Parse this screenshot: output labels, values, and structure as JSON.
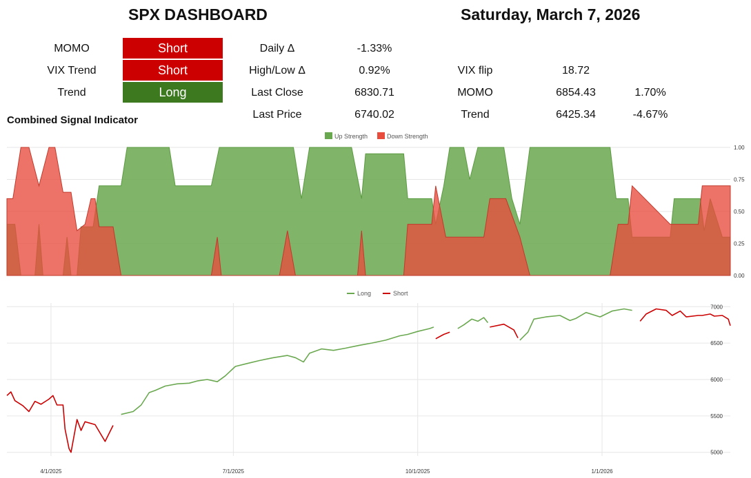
{
  "header": {
    "title": "SPX DASHBOARD",
    "date": "Saturday, March 7, 2026"
  },
  "signals": [
    {
      "label": "MOMO",
      "value": "Short",
      "state": "short"
    },
    {
      "label": "VIX Trend",
      "value": "Short",
      "state": "short"
    },
    {
      "label": "Trend",
      "value": "Long",
      "state": "long"
    }
  ],
  "stats": {
    "daily_label": "Daily Δ",
    "daily_value": "-1.33%",
    "highlow_label": "High/Low Δ",
    "highlow_value": "0.92%",
    "lastclose_label": "Last Close",
    "lastclose_value": "6830.71",
    "lastprice_label": "Last Price",
    "lastprice_value": "6740.02"
  },
  "levels": {
    "vixflip_label": "VIX flip",
    "vixflip_value": "18.72",
    "momo_label": "MOMO",
    "momo_value": "6854.43",
    "momo_pct": "1.70%",
    "trend_label": "Trend",
    "trend_value": "6425.34",
    "trend_pct": "-4.67%"
  },
  "colors": {
    "short": "#cc0000",
    "long": "#3d7a1f",
    "up_strength": "#6aa84f",
    "down_strength": "#e84c3d",
    "line_long": "#6aa84f",
    "line_short": "#cc0000"
  },
  "chart_data": [
    {
      "type": "area",
      "title": "Combined Signal Indicator",
      "legend": "top-center",
      "ylim": [
        0,
        1
      ],
      "yticks": [
        "0.00",
        "0.25",
        "0.50",
        "0.75",
        "1.00"
      ],
      "grid": true,
      "series": [
        {
          "name": "Up Strength",
          "color": "#6aa84f"
        },
        {
          "name": "Down Strength",
          "color": "#e84c3d"
        }
      ],
      "x_start": "2025-03-10",
      "x_end": "2026-03-06",
      "up_points": [
        [
          "2025-03-10",
          0.4
        ],
        [
          "2025-03-14",
          0.4
        ],
        [
          "2025-03-17",
          0.0
        ],
        [
          "2025-03-24",
          0.0
        ],
        [
          "2025-03-26",
          0.4
        ],
        [
          "2025-03-28",
          0.0
        ],
        [
          "2025-04-07",
          0.0
        ],
        [
          "2025-04-09",
          0.3
        ],
        [
          "2025-04-11",
          0.0
        ],
        [
          "2025-04-14",
          0.0
        ],
        [
          "2025-04-16",
          0.38
        ],
        [
          "2025-04-22",
          0.38
        ],
        [
          "2025-04-25",
          0.7
        ],
        [
          "2025-05-06",
          0.7
        ],
        [
          "2025-05-09",
          1.0
        ],
        [
          "2025-05-30",
          1.0
        ],
        [
          "2025-06-02",
          0.7
        ],
        [
          "2025-06-20",
          0.7
        ],
        [
          "2025-06-24",
          1.0
        ],
        [
          "2025-07-31",
          1.0
        ],
        [
          "2025-08-04",
          0.6
        ],
        [
          "2025-08-08",
          1.0
        ],
        [
          "2025-08-29",
          1.0
        ],
        [
          "2025-09-03",
          0.6
        ],
        [
          "2025-09-05",
          0.95
        ],
        [
          "2025-09-24",
          0.95
        ],
        [
          "2025-09-26",
          0.6
        ],
        [
          "2025-10-08",
          0.6
        ],
        [
          "2025-10-10",
          0.4
        ],
        [
          "2025-10-14",
          0.7
        ],
        [
          "2025-10-17",
          1.0
        ],
        [
          "2025-10-24",
          1.0
        ],
        [
          "2025-10-27",
          0.75
        ],
        [
          "2025-10-31",
          1.0
        ],
        [
          "2025-11-13",
          1.0
        ],
        [
          "2025-11-17",
          0.6
        ],
        [
          "2025-11-21",
          0.4
        ],
        [
          "2025-11-26",
          1.0
        ],
        [
          "2026-01-05",
          1.0
        ],
        [
          "2026-01-08",
          0.6
        ],
        [
          "2026-01-14",
          0.6
        ],
        [
          "2026-01-16",
          0.3
        ],
        [
          "2026-02-04",
          0.3
        ],
        [
          "2026-02-06",
          0.6
        ],
        [
          "2026-02-19",
          0.6
        ],
        [
          "2026-02-21",
          0.35
        ],
        [
          "2026-02-24",
          0.6
        ],
        [
          "2026-03-02",
          0.3
        ],
        [
          "2026-03-06",
          0.3
        ]
      ],
      "down_points": [
        [
          "2025-03-10",
          0.6
        ],
        [
          "2025-03-13",
          0.6
        ],
        [
          "2025-03-17",
          1.0
        ],
        [
          "2025-03-21",
          1.0
        ],
        [
          "2025-03-26",
          0.7
        ],
        [
          "2025-03-31",
          1.0
        ],
        [
          "2025-04-03",
          1.0
        ],
        [
          "2025-04-07",
          0.65
        ],
        [
          "2025-04-11",
          0.65
        ],
        [
          "2025-04-14",
          0.35
        ],
        [
          "2025-04-18",
          0.4
        ],
        [
          "2025-04-21",
          0.6
        ],
        [
          "2025-04-23",
          0.6
        ],
        [
          "2025-04-25",
          0.38
        ],
        [
          "2025-05-02",
          0.38
        ],
        [
          "2025-05-06",
          0.0
        ],
        [
          "2025-06-20",
          0.0
        ],
        [
          "2025-06-23",
          0.3
        ],
        [
          "2025-06-25",
          0.0
        ],
        [
          "2025-07-24",
          0.0
        ],
        [
          "2025-07-28",
          0.35
        ],
        [
          "2025-08-01",
          0.0
        ],
        [
          "2025-09-01",
          0.0
        ],
        [
          "2025-09-03",
          0.35
        ],
        [
          "2025-09-05",
          0.0
        ],
        [
          "2025-09-24",
          0.0
        ],
        [
          "2025-09-26",
          0.4
        ],
        [
          "2025-10-08",
          0.4
        ],
        [
          "2025-10-10",
          0.7
        ],
        [
          "2025-10-15",
          0.3
        ],
        [
          "2025-10-27",
          0.3
        ],
        [
          "2025-11-03",
          0.3
        ],
        [
          "2025-11-06",
          0.6
        ],
        [
          "2025-11-14",
          0.6
        ],
        [
          "2025-11-21",
          0.3
        ],
        [
          "2025-11-26",
          0.0
        ],
        [
          "2026-01-05",
          0.0
        ],
        [
          "2026-01-09",
          0.4
        ],
        [
          "2026-01-14",
          0.4
        ],
        [
          "2026-01-16",
          0.7
        ],
        [
          "2026-02-04",
          0.4
        ],
        [
          "2026-02-18",
          0.4
        ],
        [
          "2026-02-20",
          0.7
        ],
        [
          "2026-02-27",
          0.7
        ],
        [
          "2026-03-02",
          0.7
        ],
        [
          "2026-03-06",
          0.7
        ]
      ]
    },
    {
      "type": "line",
      "legend": "top-center",
      "ylim": [
        4950,
        7050
      ],
      "yticks": [
        5000,
        5500,
        6000,
        6500,
        7000
      ],
      "xticks": [
        {
          "date": "2025-04-01",
          "label": "4/1/2025"
        },
        {
          "date": "2025-07-01",
          "label": "7/1/2025"
        },
        {
          "date": "2025-10-01",
          "label": "10/1/2025"
        },
        {
          "date": "2026-01-01",
          "label": "1/1/2026"
        }
      ],
      "grid": true,
      "series": [
        {
          "name": "Long",
          "color": "#6aa84f"
        },
        {
          "name": "Short",
          "color": "#cc0000"
        }
      ],
      "x_start": "2025-03-10",
      "x_end": "2026-03-06",
      "points": [
        [
          "2025-03-10",
          5780,
          "S"
        ],
        [
          "2025-03-12",
          5830,
          "S"
        ],
        [
          "2025-03-14",
          5710,
          "S"
        ],
        [
          "2025-03-18",
          5640,
          "S"
        ],
        [
          "2025-03-21",
          5560,
          "S"
        ],
        [
          "2025-03-24",
          5700,
          "S"
        ],
        [
          "2025-03-27",
          5660,
          "S"
        ],
        [
          "2025-03-31",
          5730,
          "S"
        ],
        [
          "2025-04-02",
          5780,
          "S"
        ],
        [
          "2025-04-04",
          5650,
          "S"
        ],
        [
          "2025-04-07",
          5650,
          "S"
        ],
        [
          "2025-04-08",
          5320,
          "S"
        ],
        [
          "2025-04-10",
          5050,
          "S"
        ],
        [
          "2025-04-11",
          5000,
          "S"
        ],
        [
          "2025-04-14",
          5450,
          "S"
        ],
        [
          "2025-04-16",
          5300,
          "S"
        ],
        [
          "2025-04-18",
          5420,
          "S"
        ],
        [
          "2025-04-23",
          5380,
          "S"
        ],
        [
          "2025-04-28",
          5150,
          "S"
        ],
        [
          "2025-05-02",
          5370,
          "S"
        ],
        [
          "2025-05-06",
          5520,
          "L"
        ],
        [
          "2025-05-12",
          5560,
          "L"
        ],
        [
          "2025-05-16",
          5650,
          "L"
        ],
        [
          "2025-05-20",
          5820,
          "L"
        ],
        [
          "2025-05-23",
          5850,
          "L"
        ],
        [
          "2025-05-28",
          5910,
          "L"
        ],
        [
          "2025-06-03",
          5940,
          "L"
        ],
        [
          "2025-06-09",
          5950,
          "L"
        ],
        [
          "2025-06-13",
          5980,
          "L"
        ],
        [
          "2025-06-18",
          6000,
          "L"
        ],
        [
          "2025-06-23",
          5970,
          "L"
        ],
        [
          "2025-06-27",
          6050,
          "L"
        ],
        [
          "2025-07-02",
          6180,
          "L"
        ],
        [
          "2025-07-08",
          6220,
          "L"
        ],
        [
          "2025-07-14",
          6260,
          "L"
        ],
        [
          "2025-07-21",
          6300,
          "L"
        ],
        [
          "2025-07-28",
          6330,
          "L"
        ],
        [
          "2025-08-01",
          6300,
          "L"
        ],
        [
          "2025-08-05",
          6240,
          "L"
        ],
        [
          "2025-08-08",
          6360,
          "L"
        ],
        [
          "2025-08-14",
          6420,
          "L"
        ],
        [
          "2025-08-20",
          6400,
          "L"
        ],
        [
          "2025-08-26",
          6430,
          "L"
        ],
        [
          "2025-09-02",
          6470,
          "L"
        ],
        [
          "2025-09-08",
          6500,
          "L"
        ],
        [
          "2025-09-15",
          6540,
          "L"
        ],
        [
          "2025-09-22",
          6600,
          "L"
        ],
        [
          "2025-09-26",
          6620,
          "L"
        ],
        [
          "2025-10-01",
          6660,
          "L"
        ],
        [
          "2025-10-07",
          6700,
          "L"
        ],
        [
          "2025-10-09",
          6720,
          "L"
        ],
        [
          "2025-10-10",
          6560,
          "S"
        ],
        [
          "2025-10-14",
          6620,
          "S"
        ],
        [
          "2025-10-17",
          6650,
          "S"
        ],
        [
          "2025-10-21",
          6700,
          "L"
        ],
        [
          "2025-10-24",
          6750,
          "L"
        ],
        [
          "2025-10-28",
          6830,
          "L"
        ],
        [
          "2025-10-31",
          6800,
          "L"
        ],
        [
          "2025-11-03",
          6850,
          "L"
        ],
        [
          "2025-11-05",
          6780,
          "L"
        ],
        [
          "2025-11-06",
          6720,
          "S"
        ],
        [
          "2025-11-13",
          6760,
          "S"
        ],
        [
          "2025-11-18",
          6680,
          "S"
        ],
        [
          "2025-11-20",
          6570,
          "S"
        ],
        [
          "2025-11-21",
          6540,
          "L"
        ],
        [
          "2025-11-25",
          6650,
          "L"
        ],
        [
          "2025-11-28",
          6830,
          "L"
        ],
        [
          "2025-12-04",
          6860,
          "L"
        ],
        [
          "2025-12-11",
          6880,
          "L"
        ],
        [
          "2025-12-16",
          6810,
          "L"
        ],
        [
          "2025-12-19",
          6840,
          "L"
        ],
        [
          "2025-12-24",
          6920,
          "L"
        ],
        [
          "2025-12-31",
          6860,
          "L"
        ],
        [
          "2026-01-06",
          6940,
          "L"
        ],
        [
          "2026-01-12",
          6970,
          "L"
        ],
        [
          "2026-01-16",
          6950,
          "L"
        ],
        [
          "2026-01-20",
          6800,
          "S"
        ],
        [
          "2026-01-23",
          6900,
          "S"
        ],
        [
          "2026-01-28",
          6970,
          "S"
        ],
        [
          "2026-02-02",
          6950,
          "S"
        ],
        [
          "2026-02-05",
          6880,
          "S"
        ],
        [
          "2026-02-09",
          6940,
          "S"
        ],
        [
          "2026-02-12",
          6860,
          "S"
        ],
        [
          "2026-02-18",
          6880,
          "S"
        ],
        [
          "2026-02-20",
          6880,
          "S"
        ],
        [
          "2026-02-24",
          6900,
          "S"
        ],
        [
          "2026-02-26",
          6870,
          "S"
        ],
        [
          "2026-03-02",
          6880,
          "S"
        ],
        [
          "2026-03-05",
          6830,
          "S"
        ],
        [
          "2026-03-06",
          6740,
          "S"
        ]
      ]
    }
  ]
}
